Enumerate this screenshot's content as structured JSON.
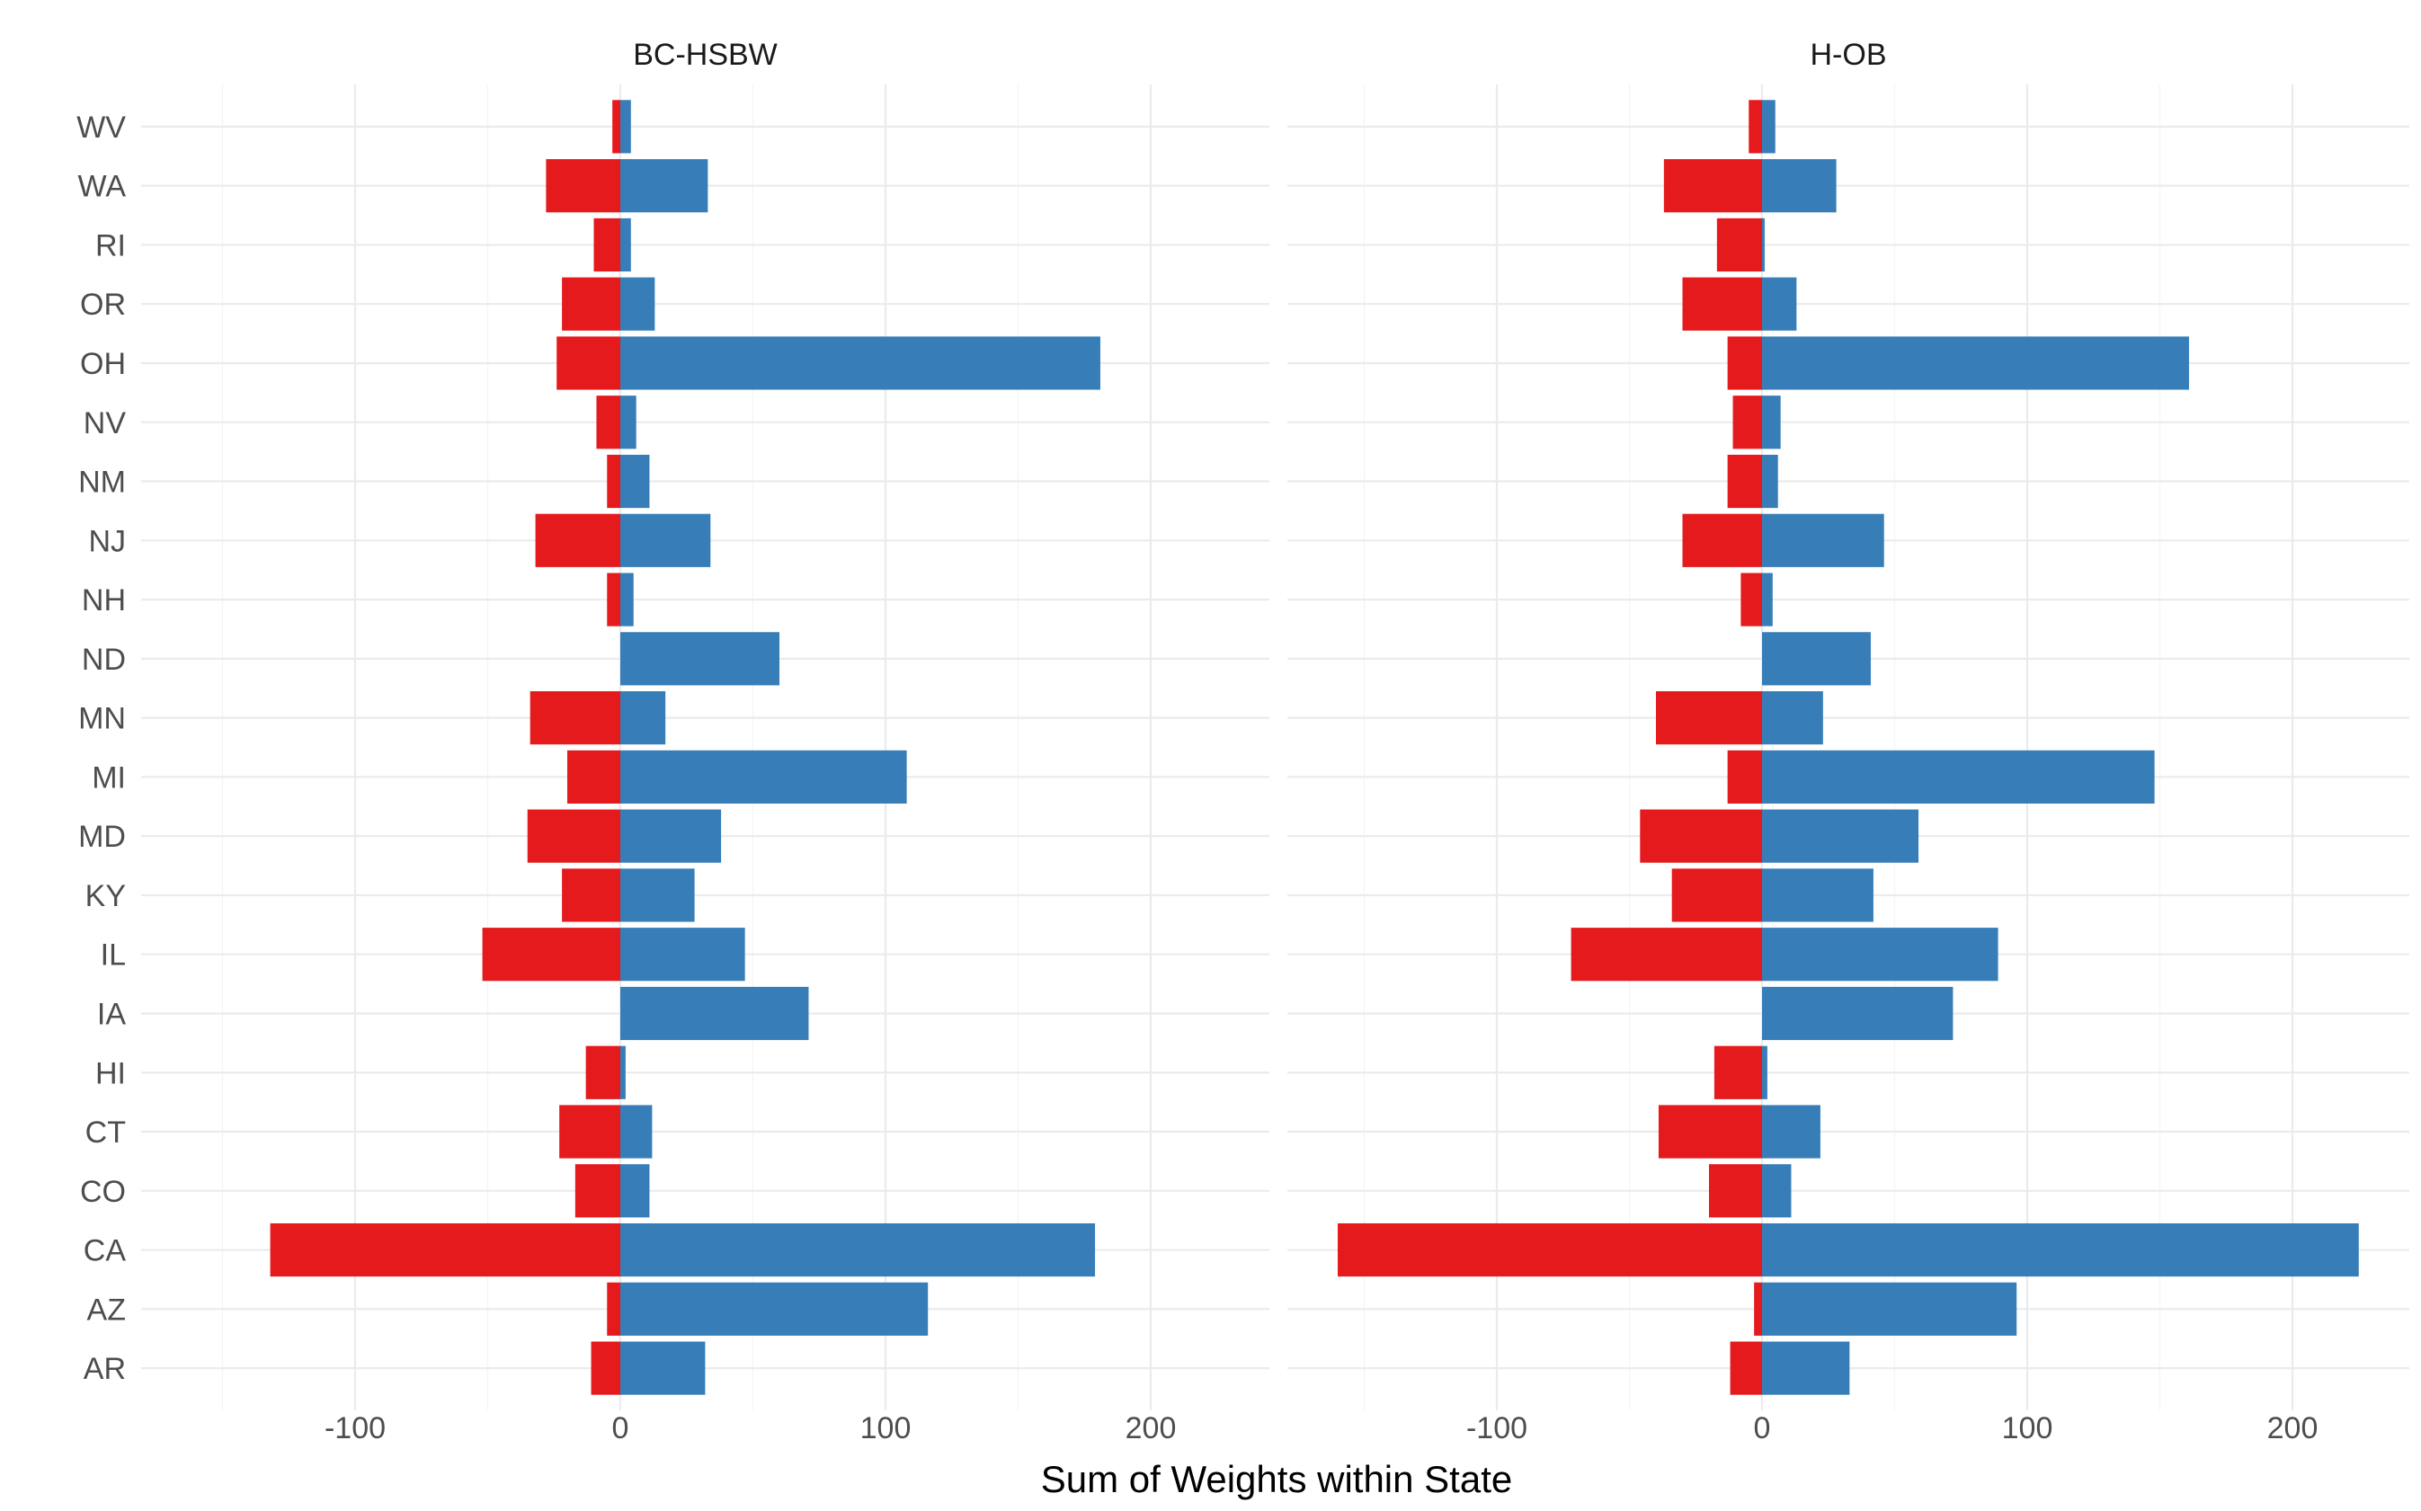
{
  "chart_data": {
    "type": "bar",
    "orientation": "horizontal",
    "xlabel": "Sum of Weights within State",
    "ylabel": "",
    "grid": true,
    "legend": "none",
    "colors": {
      "negative": "#e41a1c",
      "positive": "#377eb8"
    },
    "categories": [
      "WV",
      "WA",
      "RI",
      "OR",
      "OH",
      "NV",
      "NM",
      "NJ",
      "NH",
      "ND",
      "MN",
      "MI",
      "MD",
      "KY",
      "IL",
      "IA",
      "HI",
      "CT",
      "CO",
      "CA",
      "AZ",
      "AR"
    ],
    "xlim": [
      -150,
      235
    ],
    "xticks": [
      -100,
      0,
      100,
      200
    ],
    "xtick_labels": [
      "-100",
      "0",
      "100",
      "200"
    ],
    "panels": [
      {
        "title": "BC-HSBW",
        "series": [
          {
            "values": [
              -3,
              -28,
              -10,
              -22,
              -24,
              -9,
              -5,
              -32,
              -5,
              0,
              -34,
              -20,
              -35,
              -22,
              -52,
              0,
              -13,
              -23,
              -17,
              -132,
              -5,
              -11
            ]
          },
          {
            "values": [
              4,
              33,
              4,
              13,
              181,
              6,
              11,
              34,
              5,
              60,
              17,
              108,
              38,
              28,
              47,
              71,
              2,
              12,
              11,
              179,
              116,
              32
            ]
          }
        ]
      },
      {
        "title": "H-OB",
        "series": [
          {
            "values": [
              -5,
              -37,
              -17,
              -30,
              -13,
              -11,
              -13,
              -30,
              -8,
              0,
              -40,
              -13,
              -46,
              -34,
              -72,
              0,
              -18,
              -39,
              -20,
              -160,
              -3,
              -12
            ]
          },
          {
            "values": [
              5,
              28,
              1,
              13,
              161,
              7,
              6,
              46,
              4,
              41,
              23,
              148,
              59,
              42,
              89,
              72,
              2,
              22,
              11,
              225,
              96,
              33
            ]
          }
        ]
      }
    ]
  }
}
